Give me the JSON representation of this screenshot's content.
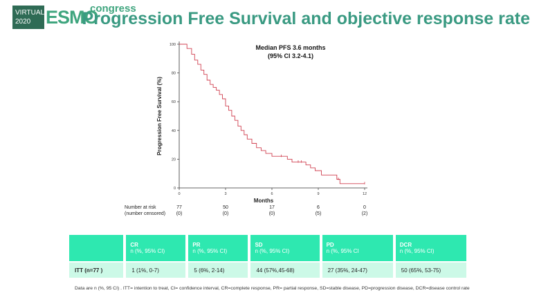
{
  "header": {
    "logo_virtual_line1": "VIRTUAL",
    "logo_virtual_line2": "2020",
    "logo_esmo": "ESMO",
    "logo_congress": "congress",
    "title": "Progression Free Survival and objective response rate"
  },
  "chart_data": {
    "type": "line",
    "title": "Median PFS 3.6 months",
    "subtitle": "(95% CI 3.2-4.1)",
    "xlabel": "Months",
    "ylabel": "Progression Free Survival (%)",
    "xlim": [
      0,
      12
    ],
    "ylim": [
      0,
      100
    ],
    "xticks": [
      0,
      3,
      6,
      9,
      12
    ],
    "yticks": [
      0,
      20,
      40,
      60,
      80,
      100
    ],
    "line_color": "#d04050",
    "series": [
      {
        "x": [
          0,
          0.5,
          0.5,
          0.8,
          0.8,
          1.0,
          1.0,
          1.2,
          1.2,
          1.4,
          1.4,
          1.6,
          1.6,
          1.8,
          1.8,
          2.0,
          2.0,
          2.2,
          2.2,
          2.4,
          2.4,
          2.6,
          2.6,
          2.8,
          2.8,
          3.0,
          3.0,
          3.2,
          3.2,
          3.4,
          3.4,
          3.6,
          3.6,
          3.8,
          3.8,
          4.0,
          4.0,
          4.2,
          4.2,
          4.4,
          4.4,
          4.7,
          4.7,
          5.0,
          5.0,
          5.3,
          5.3,
          5.6,
          5.6,
          6.0,
          6.0,
          6.3,
          6.3,
          7.0,
          7.0,
          7.3,
          7.3,
          8.2,
          8.2,
          8.5,
          8.5,
          8.8,
          8.8,
          9.2,
          9.2,
          10.2,
          10.2,
          10.4,
          10.4,
          12.0
        ],
        "y": [
          100,
          100,
          97,
          97,
          93,
          93,
          89,
          89,
          86,
          86,
          82,
          82,
          79,
          79,
          75,
          75,
          72,
          72,
          70,
          70,
          68,
          68,
          65,
          65,
          62,
          62,
          57,
          57,
          54,
          54,
          50,
          50,
          47,
          47,
          43,
          43,
          40,
          40,
          37,
          37,
          34,
          34,
          31,
          31,
          28,
          28,
          26,
          26,
          24,
          24,
          22,
          22,
          22,
          22,
          20,
          20,
          18,
          18,
          16,
          16,
          14,
          14,
          12,
          12,
          9,
          9,
          6,
          6,
          3,
          3
        ]
      }
    ],
    "censor_marks": [
      {
        "x": 6.6,
        "y": 22
      },
      {
        "x": 7.7,
        "y": 18
      },
      {
        "x": 7.9,
        "y": 18
      },
      {
        "x": 10.3,
        "y": 6
      },
      {
        "x": 12.0,
        "y": 3
      }
    ],
    "risk_table": {
      "label1": "Number at risk",
      "label2": "(number censored)",
      "counts": [
        "77",
        "50",
        "17",
        "6",
        "0"
      ],
      "censored": [
        "(0)",
        "(0)",
        "(0)",
        "(5)",
        "(2)"
      ]
    }
  },
  "response_table": {
    "headers": [
      {
        "h": "",
        "sub": ""
      },
      {
        "h": "CR",
        "sub": "n (%, 95% CI)"
      },
      {
        "h": "PR",
        "sub": "n (%, 95% CI)"
      },
      {
        "h": "SD",
        "sub": "n (%, 95% CI)"
      },
      {
        "h": "PD",
        "sub": "n (%, 95% CI"
      },
      {
        "h": "DCR",
        "sub": "n (%, 95% CI)"
      }
    ],
    "row": [
      "ITT (n=77 )",
      "1 (1%, 0-7)",
      "5 (6%, 2-14)",
      "44 (57%,45-68)",
      "27 (35%, 24-47)",
      "50 (65%, 53-75)"
    ]
  },
  "footnote": "Data are n (%, 95 CI) . ITT= intention to treat, CI= confidence interval, CR=complete response, PR= partial response, SD=stable disease, PD=progression disease, DCR=disease control rate"
}
